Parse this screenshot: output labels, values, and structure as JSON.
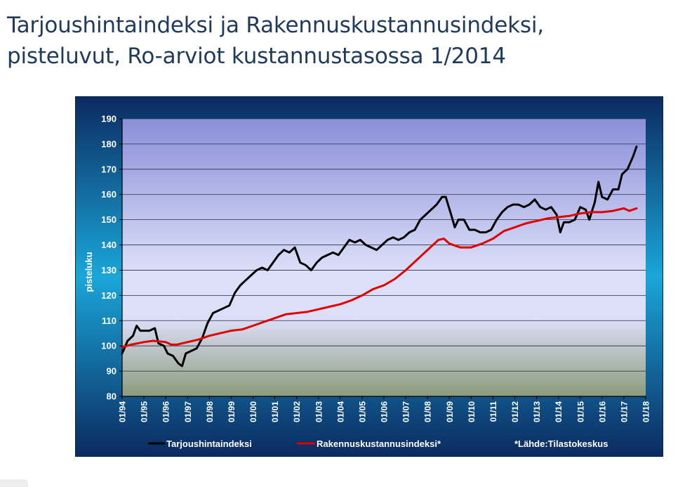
{
  "slide": {
    "title_line1": "Tarjoushintaindeksi ja Rakennuskustannusindeksi,",
    "title_line2": "pisteluvut, Ro-arviot kustannustasossa 1/2014"
  },
  "colors": {
    "frame_top": "#0b2a60",
    "frame_mid": "#1aa6d8",
    "frame_bottom": "#0b2a60",
    "plot_top": "#8a8fd8",
    "plot_mid": "#dcdff8",
    "plot_bottom": "#8c9b7c",
    "series_tarjous": "#000000",
    "series_rakennus": "#e00000",
    "text": "#ffffff"
  },
  "chart_data": {
    "type": "line",
    "ylabel": "pisteluku",
    "xlabel": "",
    "ylim": [
      80,
      190
    ],
    "yticks": [
      80,
      90,
      100,
      110,
      120,
      130,
      140,
      150,
      160,
      170,
      180,
      190
    ],
    "xticks": [
      "01/94",
      "01/95",
      "01/96",
      "01/97",
      "01/98",
      "01/99",
      "01/00",
      "01/01",
      "01/02",
      "01/03",
      "01/04",
      "01/05",
      "01/06",
      "01/07",
      "01/08",
      "01/09",
      "01/10",
      "01/11",
      "01/12",
      "01/13",
      "01/14",
      "01/15",
      "01/16",
      "01/17",
      "01/18"
    ],
    "grid": true,
    "legend_position": "bottom",
    "source_note": "*Lähde:Tilastokeskus",
    "series": [
      {
        "name": "Tarjoushintaindeksi",
        "color": "#000000",
        "points": [
          [
            "01/94",
            97
          ],
          [
            "04/94",
            102
          ],
          [
            "07/94",
            104
          ],
          [
            "09/94",
            108
          ],
          [
            "11/94",
            106
          ],
          [
            "01/95",
            106
          ],
          [
            "04/95",
            106
          ],
          [
            "07/95",
            107
          ],
          [
            "09/95",
            101
          ],
          [
            "12/95",
            100
          ],
          [
            "02/96",
            97
          ],
          [
            "05/96",
            96
          ],
          [
            "08/96",
            93
          ],
          [
            "10/96",
            92
          ],
          [
            "12/96",
            97
          ],
          [
            "03/97",
            98
          ],
          [
            "06/97",
            99
          ],
          [
            "09/97",
            103
          ],
          [
            "12/97",
            109
          ],
          [
            "03/98",
            113
          ],
          [
            "06/98",
            114
          ],
          [
            "09/98",
            115
          ],
          [
            "12/98",
            116
          ],
          [
            "03/99",
            121
          ],
          [
            "06/99",
            124
          ],
          [
            "09/99",
            126
          ],
          [
            "12/99",
            128
          ],
          [
            "03/00",
            130
          ],
          [
            "06/00",
            131
          ],
          [
            "09/00",
            130
          ],
          [
            "12/00",
            133
          ],
          [
            "03/01",
            136
          ],
          [
            "06/01",
            138
          ],
          [
            "09/01",
            137
          ],
          [
            "12/01",
            139
          ],
          [
            "03/02",
            133
          ],
          [
            "06/02",
            132
          ],
          [
            "09/02",
            130
          ],
          [
            "12/02",
            133
          ],
          [
            "03/03",
            135
          ],
          [
            "06/03",
            136
          ],
          [
            "09/03",
            137
          ],
          [
            "12/03",
            136
          ],
          [
            "03/04",
            139
          ],
          [
            "06/04",
            142
          ],
          [
            "09/04",
            141
          ],
          [
            "12/04",
            142
          ],
          [
            "03/05",
            140
          ],
          [
            "06/05",
            139
          ],
          [
            "09/05",
            138
          ],
          [
            "12/05",
            140
          ],
          [
            "03/06",
            142
          ],
          [
            "06/06",
            143
          ],
          [
            "09/06",
            142
          ],
          [
            "12/06",
            143
          ],
          [
            "03/07",
            145
          ],
          [
            "06/07",
            146
          ],
          [
            "09/07",
            150
          ],
          [
            "12/07",
            152
          ],
          [
            "03/08",
            154
          ],
          [
            "06/08",
            156
          ],
          [
            "09/08",
            159
          ],
          [
            "11/08",
            159
          ],
          [
            "02/09",
            152
          ],
          [
            "04/09",
            147
          ],
          [
            "06/09",
            150
          ],
          [
            "09/09",
            150
          ],
          [
            "12/09",
            146
          ],
          [
            "03/10",
            146
          ],
          [
            "06/10",
            145
          ],
          [
            "09/10",
            145
          ],
          [
            "12/10",
            146
          ],
          [
            "03/11",
            150
          ],
          [
            "06/11",
            153
          ],
          [
            "09/11",
            155
          ],
          [
            "12/11",
            156
          ],
          [
            "03/12",
            156
          ],
          [
            "06/12",
            155
          ],
          [
            "09/12",
            156
          ],
          [
            "12/12",
            158
          ],
          [
            "03/13",
            155
          ],
          [
            "06/13",
            154
          ],
          [
            "09/13",
            155
          ],
          [
            "12/13",
            152
          ],
          [
            "02/14",
            145
          ],
          [
            "04/14",
            149
          ],
          [
            "07/14",
            149
          ],
          [
            "10/14",
            150
          ],
          [
            "01/15",
            155
          ],
          [
            "04/15",
            154
          ],
          [
            "06/15",
            150
          ],
          [
            "09/15",
            157
          ],
          [
            "11/15",
            165
          ],
          [
            "01/16",
            159
          ],
          [
            "04/16",
            158
          ],
          [
            "07/16",
            162
          ],
          [
            "10/16",
            162
          ],
          [
            "12/16",
            168
          ],
          [
            "03/17",
            170
          ],
          [
            "06/17",
            175
          ],
          [
            "08/17",
            179
          ]
        ]
      },
      {
        "name": "Rakennuskustannusindeksi*",
        "color": "#e00000",
        "points": [
          [
            "01/94",
            99.5
          ],
          [
            "06/94",
            100.5
          ],
          [
            "01/95",
            101.5
          ],
          [
            "06/95",
            102
          ],
          [
            "01/96",
            101.5
          ],
          [
            "04/96",
            100.5
          ],
          [
            "07/96",
            100.5
          ],
          [
            "01/97",
            101.5
          ],
          [
            "07/97",
            102.5
          ],
          [
            "01/98",
            104
          ],
          [
            "07/98",
            105
          ],
          [
            "01/99",
            106
          ],
          [
            "07/99",
            106.5
          ],
          [
            "01/00",
            108
          ],
          [
            "07/00",
            109.5
          ],
          [
            "01/01",
            111
          ],
          [
            "07/01",
            112.5
          ],
          [
            "01/02",
            113
          ],
          [
            "07/02",
            113.5
          ],
          [
            "01/03",
            114.5
          ],
          [
            "07/03",
            115.5
          ],
          [
            "01/04",
            116.5
          ],
          [
            "07/04",
            118
          ],
          [
            "01/05",
            120
          ],
          [
            "07/05",
            122.5
          ],
          [
            "01/06",
            124
          ],
          [
            "07/06",
            126.5
          ],
          [
            "01/07",
            130
          ],
          [
            "07/07",
            134
          ],
          [
            "01/08",
            138
          ],
          [
            "07/08",
            142
          ],
          [
            "10/08",
            142.5
          ],
          [
            "01/09",
            140.5
          ],
          [
            "07/09",
            139
          ],
          [
            "01/10",
            139
          ],
          [
            "07/10",
            140.5
          ],
          [
            "01/11",
            142.5
          ],
          [
            "07/11",
            145.5
          ],
          [
            "01/12",
            147
          ],
          [
            "07/12",
            148.5
          ],
          [
            "01/13",
            149.5
          ],
          [
            "07/13",
            150.5
          ],
          [
            "01/14",
            151
          ],
          [
            "07/14",
            151.5
          ],
          [
            "01/15",
            152.5
          ],
          [
            "07/15",
            153
          ],
          [
            "01/16",
            153
          ],
          [
            "07/16",
            153.5
          ],
          [
            "01/17",
            154.5
          ],
          [
            "04/17",
            153.5
          ],
          [
            "08/17",
            154.5
          ]
        ]
      }
    ]
  }
}
